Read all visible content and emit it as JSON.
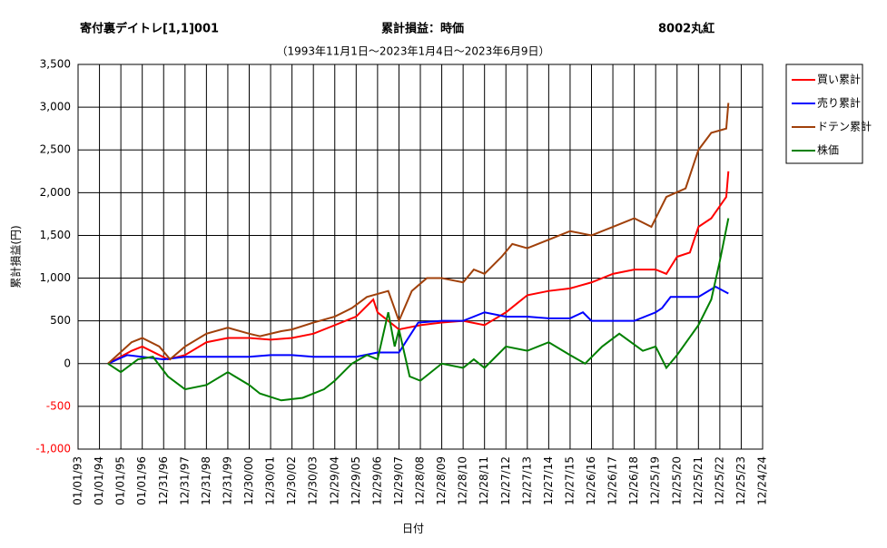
{
  "chart_data": {
    "type": "line",
    "title": "寄付裏デイトレ[1,1]001",
    "subtitle": "累計損益：時価",
    "symbol": "8002丸紅",
    "period": "（1993年11月1日～2023年1月4日～2023年6月9日）",
    "ylabel": "累計損益(円)",
    "xlabel": "日付",
    "ylim": [
      -1000,
      3500
    ],
    "yticks": [
      {
        "value": -1000,
        "label": "-1,000"
      },
      -500,
      0,
      500,
      {
        "value": 1000,
        "label": "1,000"
      },
      {
        "value": 1500,
        "label": "1,500"
      },
      {
        "value": 2000,
        "label": "2,000"
      },
      {
        "value": 2500,
        "label": "2,500"
      },
      {
        "value": 3000,
        "label": "3,000"
      },
      {
        "value": 3500,
        "label": "3,500"
      }
    ],
    "xlim": [
      0,
      32
    ],
    "xticks": [
      {
        "value": 0,
        "label": "01/01/93"
      },
      {
        "value": 1,
        "label": "01/01/94"
      },
      {
        "value": 2,
        "label": "01/01/95"
      },
      {
        "value": 3,
        "label": "01/01/96"
      },
      {
        "value": 4,
        "label": "12/31/96"
      },
      {
        "value": 5,
        "label": "12/31/97"
      },
      {
        "value": 6,
        "label": "12/31/98"
      },
      {
        "value": 7,
        "label": "12/31/99"
      },
      {
        "value": 8,
        "label": "12/30/00"
      },
      {
        "value": 9,
        "label": "12/30/01"
      },
      {
        "value": 10,
        "label": "12/30/02"
      },
      {
        "value": 11,
        "label": "12/30/03"
      },
      {
        "value": 12,
        "label": "12/29/04"
      },
      {
        "value": 13,
        "label": "12/29/05"
      },
      {
        "value": 14,
        "label": "12/29/06"
      },
      {
        "value": 15,
        "label": "12/29/07"
      },
      {
        "value": 16,
        "label": "12/28/08"
      },
      {
        "value": 17,
        "label": "12/28/09"
      },
      {
        "value": 18,
        "label": "12/28/10"
      },
      {
        "value": 19,
        "label": "12/28/11"
      },
      {
        "value": 20,
        "label": "12/27/12"
      },
      {
        "value": 21,
        "label": "12/27/13"
      },
      {
        "value": 22,
        "label": "12/27/14"
      },
      {
        "value": 23,
        "label": "12/27/15"
      },
      {
        "value": 24,
        "label": "12/26/16"
      },
      {
        "value": 25,
        "label": "12/26/17"
      },
      {
        "value": 26,
        "label": "12/26/18"
      },
      {
        "value": 27,
        "label": "12/25/19"
      },
      {
        "value": 28,
        "label": "12/25/20"
      },
      {
        "value": 29,
        "label": "12/25/21"
      },
      {
        "value": 30,
        "label": "12/25/22"
      },
      {
        "value": 31,
        "label": "12/25/23"
      },
      {
        "value": 32,
        "label": "12/24/24"
      }
    ],
    "grid": true,
    "legend": "right",
    "series": [
      {
        "name": "買い累計",
        "color": "#ff0000",
        "x": [
          1.4,
          2.5,
          3,
          4.2,
          5,
          6,
          7,
          8,
          9,
          10,
          11,
          12,
          13,
          13.8,
          14,
          15,
          16,
          17,
          18,
          19,
          20,
          20.5,
          21,
          22,
          23,
          24,
          25,
          26,
          27,
          27.5,
          28,
          28.6,
          29,
          29.6,
          30.3,
          30.4
        ],
        "values": [
          0,
          150,
          200,
          50,
          100,
          250,
          300,
          300,
          280,
          300,
          350,
          450,
          550,
          750,
          600,
          400,
          450,
          480,
          500,
          450,
          600,
          700,
          800,
          850,
          880,
          950,
          1050,
          1100,
          1100,
          1050,
          1250,
          1300,
          1600,
          1700,
          1950,
          2250
        ]
      },
      {
        "name": "売り累計",
        "color": "#0000ff",
        "x": [
          1.4,
          2.3,
          4,
          5,
          7,
          8,
          9,
          10,
          11,
          13,
          14,
          15,
          15.9,
          17,
          18,
          19,
          20,
          21,
          22,
          23,
          23.6,
          24,
          25,
          26,
          27,
          27.3,
          27.7,
          29,
          29.8,
          30.4
        ],
        "values": [
          0,
          100,
          50,
          80,
          80,
          80,
          100,
          100,
          80,
          80,
          130,
          130,
          480,
          500,
          500,
          600,
          550,
          550,
          530,
          530,
          600,
          500,
          500,
          500,
          600,
          650,
          780,
          780,
          900,
          820
        ]
      },
      {
        "name": "ドテン累計",
        "color": "#a0400a",
        "x": [
          1.4,
          2.5,
          3,
          3.8,
          4.3,
          5,
          6,
          7,
          8,
          8.5,
          9.5,
          10,
          11,
          12,
          12.8,
          13.5,
          14.5,
          15,
          15.6,
          16.3,
          17,
          18,
          18.5,
          19,
          19.8,
          20.3,
          21,
          22,
          23,
          24,
          25,
          26,
          26.8,
          27.5,
          28.4,
          29,
          29.6,
          30.3,
          30.4
        ],
        "values": [
          0,
          250,
          300,
          200,
          50,
          200,
          350,
          420,
          350,
          320,
          380,
          400,
          480,
          550,
          650,
          780,
          850,
          500,
          850,
          1000,
          1000,
          950,
          1100,
          1050,
          1250,
          1400,
          1350,
          1450,
          1550,
          1500,
          1600,
          1700,
          1600,
          1950,
          2050,
          2500,
          2700,
          2750,
          3050
        ]
      },
      {
        "name": "株価",
        "color": "#008000",
        "x": [
          1.4,
          2,
          2.8,
          3.5,
          4.2,
          5,
          6,
          7,
          8,
          8.5,
          9.5,
          10.5,
          11.5,
          12,
          12.8,
          13.5,
          14,
          14.5,
          14.8,
          15,
          15.5,
          16,
          17,
          18,
          18.5,
          19,
          20,
          21,
          22,
          23,
          23.7,
          24.5,
          25.3,
          26.4,
          27,
          27.5,
          28,
          29,
          29.6,
          30,
          30.4
        ],
        "values": [
          0,
          -100,
          50,
          80,
          -150,
          -300,
          -250,
          -100,
          -250,
          -350,
          -430,
          -400,
          -300,
          -200,
          0,
          100,
          50,
          600,
          200,
          400,
          -150,
          -200,
          0,
          -50,
          50,
          -50,
          200,
          150,
          250,
          100,
          0,
          200,
          350,
          150,
          200,
          -50,
          100,
          450,
          750,
          1200,
          1700
        ]
      }
    ]
  }
}
